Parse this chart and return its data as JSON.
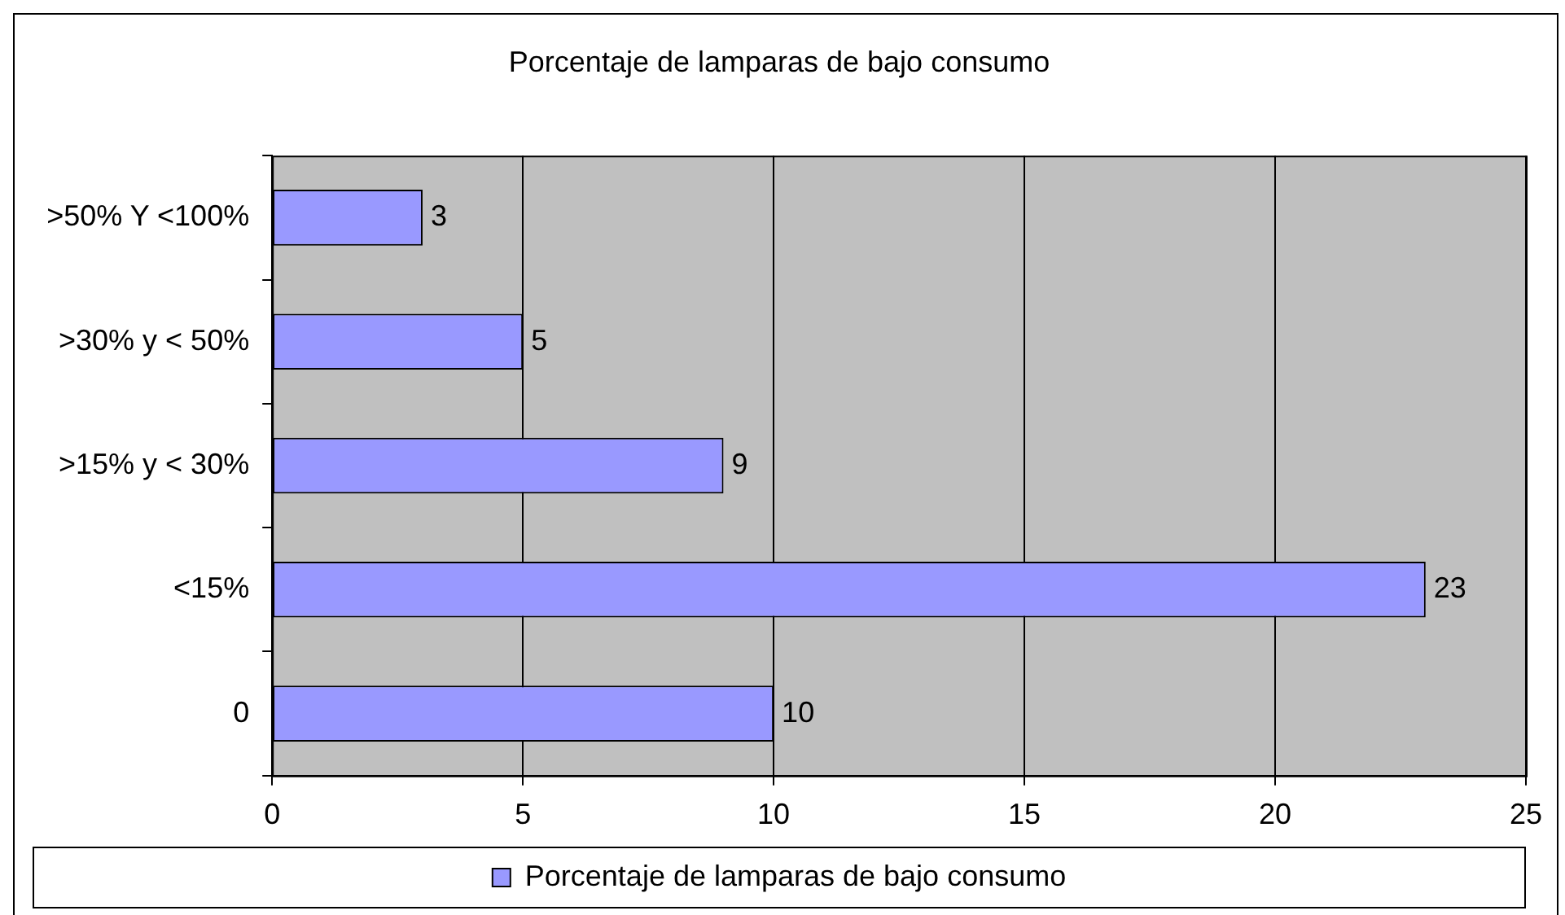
{
  "chart_data": {
    "type": "bar",
    "orientation": "horizontal",
    "title": "Porcentaje de lamparas de bajo consumo",
    "categories": [
      ">50% Y <100%",
      ">30% y < 50%",
      ">15% y < 30%",
      "<15%",
      "0"
    ],
    "series": [
      {
        "name": "Porcentaje de lamparas de bajo consumo",
        "color": "#9999ff",
        "values": [
          3,
          5,
          9,
          23,
          10
        ]
      }
    ],
    "xlim": [
      0,
      25
    ],
    "xticks": [
      0,
      5,
      10,
      15,
      20,
      25
    ],
    "grid": "x",
    "legend": "bottom",
    "data_labels": true
  }
}
